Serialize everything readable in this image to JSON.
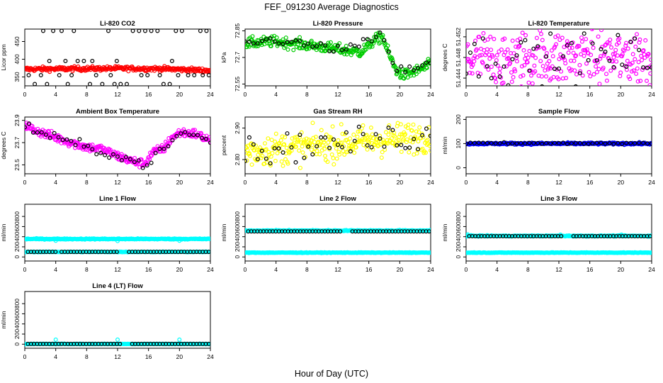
{
  "figure": {
    "title": "FEF_091230  Average Diagnostics",
    "xlabel": "Hour of Day (UTC)"
  },
  "chart_data": [
    {
      "type": "scatter",
      "title": "Li-820 CO2",
      "ylabel": "Licor ppm",
      "xlim": [
        0,
        24
      ],
      "xticks": [
        0,
        4,
        8,
        12,
        16,
        20,
        24
      ],
      "ylim": [
        325,
        485
      ],
      "yticks": [
        350,
        400,
        450
      ],
      "series": [
        {
          "name": "base",
          "color": "#ff0000",
          "gen": "band",
          "base": [
            [
              0,
              372
            ],
            [
              12,
              374
            ],
            [
              18,
              373
            ],
            [
              24,
              368
            ]
          ],
          "noise": 3,
          "n": 300
        },
        {
          "name": "avg",
          "color": "#000000",
          "gen": "co2avg",
          "n": 30
        }
      ]
    },
    {
      "type": "scatter",
      "title": "Li-820 Pressure",
      "ylabel": "kPa",
      "xlim": [
        0,
        24
      ],
      "xticks": [
        0,
        4,
        8,
        12,
        16,
        20,
        24
      ],
      "ylim": [
        72.54,
        72.86
      ],
      "yticks": [
        72.55,
        72.7,
        72.85
      ],
      "series": [
        {
          "name": "base",
          "color": "#00cc00",
          "gen": "band",
          "base": [
            [
              0,
              72.78
            ],
            [
              4,
              72.79
            ],
            [
              6,
              72.78
            ],
            [
              8,
              72.77
            ],
            [
              10,
              72.76
            ],
            [
              13,
              72.74
            ],
            [
              15,
              72.73
            ],
            [
              16.5,
              72.79
            ],
            [
              17.8,
              72.82
            ],
            [
              18.3,
              72.75
            ],
            [
              19.5,
              72.63
            ],
            [
              20.5,
              72.6
            ],
            [
              22,
              72.62
            ],
            [
              24,
              72.66
            ]
          ],
          "noise": 0.015,
          "n": 300
        },
        {
          "name": "avg",
          "color": "#000000",
          "gen": "band",
          "base": [
            [
              0,
              72.78
            ],
            [
              4,
              72.8
            ],
            [
              8,
              72.77
            ],
            [
              13,
              72.74
            ],
            [
              16.5,
              72.8
            ],
            [
              17.8,
              72.83
            ],
            [
              19.5,
              72.63
            ],
            [
              22,
              72.63
            ],
            [
              24,
              72.67
            ]
          ],
          "noise": 0.012,
          "n": 45
        }
      ]
    },
    {
      "type": "scatter",
      "title": "Li-820 Temperature",
      "ylabel": "degrees C",
      "xlim": [
        0,
        24
      ],
      "xticks": [
        0,
        4,
        8,
        12,
        16,
        20,
        24
      ],
      "ylim": [
        51.4425,
        51.4535
      ],
      "yticks": [
        51.444,
        51.448,
        51.452
      ],
      "ytick_labels": [
        "51.444",
        "51.448",
        "51.452"
      ],
      "series": [
        {
          "name": "base",
          "color": "#ff00ff",
          "gen": "band",
          "base": [
            [
              0,
              51.4475
            ],
            [
              24,
              51.4482
            ]
          ],
          "noise": 0.0028,
          "n": 300
        },
        {
          "name": "avg",
          "color": "#000000",
          "gen": "band",
          "base": [
            [
              0,
              51.4478
            ],
            [
              24,
              51.448
            ]
          ],
          "noise": 0.0022,
          "n": 45
        }
      ]
    },
    {
      "type": "scatter",
      "title": "Ambient Box Temperature",
      "ylabel": "degrees C",
      "xlim": [
        0,
        24
      ],
      "xticks": [
        0,
        4,
        8,
        12,
        16,
        20,
        24
      ],
      "ylim": [
        23.42,
        23.93
      ],
      "yticks": [
        23.5,
        23.7,
        23.9
      ],
      "series": [
        {
          "name": "base",
          "color": "#ff00ff",
          "gen": "band",
          "base": [
            [
              0,
              23.86
            ],
            [
              1,
              23.82
            ],
            [
              3,
              23.77
            ],
            [
              6,
              23.7
            ],
            [
              8,
              23.66
            ],
            [
              10,
              23.64
            ],
            [
              12,
              23.58
            ],
            [
              14,
              23.53
            ],
            [
              15.5,
              23.51
            ],
            [
              16.5,
              23.61
            ],
            [
              18,
              23.65
            ],
            [
              19,
              23.74
            ],
            [
              20,
              23.79
            ],
            [
              22,
              23.78
            ],
            [
              24,
              23.72
            ]
          ],
          "noise": 0.02,
          "n": 300
        },
        {
          "name": "avg",
          "color": "#000000",
          "gen": "band",
          "base": [
            [
              0,
              23.85
            ],
            [
              3,
              23.76
            ],
            [
              8,
              23.66
            ],
            [
              12,
              23.58
            ],
            [
              15.5,
              23.5
            ],
            [
              18,
              23.64
            ],
            [
              20,
              23.78
            ],
            [
              22,
              23.77
            ],
            [
              24,
              23.71
            ]
          ],
          "noise": 0.02,
          "n": 45
        }
      ]
    },
    {
      "type": "scatter",
      "title": "Gas Stream RH",
      "ylabel": "percent",
      "xlim": [
        0,
        24
      ],
      "xticks": [
        0,
        4,
        8,
        12,
        16,
        20,
        24
      ],
      "ylim": [
        2.755,
        2.935
      ],
      "yticks": [
        2.8,
        2.9
      ],
      "ytick_labels": [
        "2.80",
        "2.90"
      ],
      "series": [
        {
          "name": "base",
          "color": "#ffff00",
          "gen": "band",
          "base": [
            [
              0,
              2.825
            ],
            [
              12,
              2.85
            ],
            [
              24,
              2.875
            ]
          ],
          "noise": 0.025,
          "n": 300
        },
        {
          "name": "avg",
          "color": "#000000",
          "gen": "band",
          "base": [
            [
              0,
              2.825
            ],
            [
              12,
              2.852
            ],
            [
              24,
              2.875
            ]
          ],
          "noise": 0.022,
          "n": 45
        }
      ]
    },
    {
      "type": "scatter",
      "title": "Sample Flow",
      "ylabel": "ml/min",
      "xlim": [
        0,
        24
      ],
      "xticks": [
        0,
        4,
        8,
        12,
        16,
        20,
        24
      ],
      "ylim": [
        -25,
        210
      ],
      "yticks": [
        0,
        100,
        200
      ],
      "series": [
        {
          "name": "base",
          "color": "#0000ff",
          "gen": "band",
          "base": [
            [
              0,
              100
            ],
            [
              24,
              100
            ]
          ],
          "noise": 2,
          "n": 300
        },
        {
          "name": "avg",
          "color": "#000000",
          "gen": "band",
          "base": [
            [
              0,
              101
            ],
            [
              24,
              101
            ]
          ],
          "noise": 2,
          "n": 45
        }
      ]
    },
    {
      "type": "scatter",
      "title": "Line 1 Flow",
      "ylabel": "ml/min",
      "xlim": [
        0,
        24
      ],
      "xticks": [
        0,
        4,
        8,
        12,
        16,
        20,
        24
      ],
      "ylim": [
        -80,
        1040
      ],
      "yticks": [
        0,
        200,
        400,
        600,
        800
      ],
      "series": [
        {
          "name": "line_a",
          "color": "#00ffff",
          "gen": "band",
          "base": [
            [
              0,
              355
            ],
            [
              24,
              355
            ]
          ],
          "noise": 5,
          "n": 300,
          "extra": [
            [
              4,
              320
            ],
            [
              12,
              315
            ],
            [
              20,
              320
            ]
          ]
        },
        {
          "name": "line_b",
          "color": "#00ffff",
          "gen": "band",
          "base": [
            [
              0,
              100
            ],
            [
              24,
              100
            ]
          ],
          "noise": 3,
          "n": 300
        },
        {
          "name": "avg",
          "color": "#000000",
          "gen": "line",
          "base": [
            [
              0,
              100
            ],
            [
              24,
              100
            ]
          ],
          "n": 60,
          "gaps": [
            [
              4,
              4.5
            ],
            [
              12,
              13.3
            ]
          ]
        }
      ]
    },
    {
      "type": "scatter",
      "title": "Line 2 Flow",
      "ylabel": "ml/min",
      "xlim": [
        0,
        24
      ],
      "xticks": [
        0,
        4,
        8,
        12,
        16,
        20,
        24
      ],
      "ylim": [
        -80,
        1040
      ],
      "yticks": [
        0,
        200,
        400,
        600,
        800
      ],
      "series": [
        {
          "name": "line_a",
          "color": "#00ffff",
          "gen": "band",
          "base": [
            [
              0,
              520
            ],
            [
              24,
              520
            ]
          ],
          "noise": 5,
          "n": 300
        },
        {
          "name": "line_b",
          "color": "#00ffff",
          "gen": "band",
          "base": [
            [
              0,
              85
            ],
            [
              24,
              85
            ]
          ],
          "noise": 3,
          "n": 300
        },
        {
          "name": "avg",
          "color": "#000000",
          "gen": "line",
          "base": [
            [
              0,
              505
            ],
            [
              24,
              505
            ]
          ],
          "n": 60,
          "gaps": [
            [
              12.5,
              13.5
            ]
          ]
        }
      ]
    },
    {
      "type": "scatter",
      "title": "Line 3 Flow",
      "ylabel": "ml/min",
      "xlim": [
        0,
        24
      ],
      "xticks": [
        0,
        4,
        8,
        12,
        16,
        20,
        24
      ],
      "ylim": [
        -80,
        1040
      ],
      "yticks": [
        0,
        200,
        400,
        600,
        800
      ],
      "series": [
        {
          "name": "line_a",
          "color": "#00ffff",
          "gen": "band",
          "base": [
            [
              0,
              415
            ],
            [
              24,
              415
            ]
          ],
          "noise": 5,
          "n": 300,
          "extra": [
            [
              0.2,
              445
            ],
            [
              12.2,
              440
            ],
            [
              20.1,
              440
            ]
          ]
        },
        {
          "name": "line_b",
          "color": "#00ffff",
          "gen": "band",
          "base": [
            [
              0,
              85
            ],
            [
              24,
              85
            ]
          ],
          "noise": 3,
          "n": 300
        },
        {
          "name": "avg",
          "color": "#000000",
          "gen": "line",
          "base": [
            [
              0,
              410
            ],
            [
              24,
              410
            ]
          ],
          "n": 60,
          "gaps": [
            [
              12.5,
              13.5
            ]
          ]
        }
      ]
    },
    {
      "type": "scatter",
      "title": "Line 4 (LT) Flow",
      "ylabel": "ml/min",
      "xlim": [
        0,
        24
      ],
      "xticks": [
        0,
        4,
        8,
        12,
        16,
        20,
        24
      ],
      "ylim": [
        -80,
        1040
      ],
      "yticks": [
        0,
        200,
        400,
        600,
        800
      ],
      "series": [
        {
          "name": "line_a",
          "color": "#00ffff",
          "gen": "band",
          "base": [
            [
              0,
              5
            ],
            [
              24,
              5
            ]
          ],
          "noise": 2,
          "n": 300,
          "extra": [
            [
              4,
              90
            ],
            [
              12,
              90
            ],
            [
              20,
              90
            ]
          ]
        },
        {
          "name": "avg",
          "color": "#000000",
          "gen": "line",
          "base": [
            [
              0,
              5
            ],
            [
              24,
              5
            ]
          ],
          "n": 60,
          "gaps": [
            [
              12.5,
              13.5
            ]
          ]
        }
      ]
    }
  ]
}
